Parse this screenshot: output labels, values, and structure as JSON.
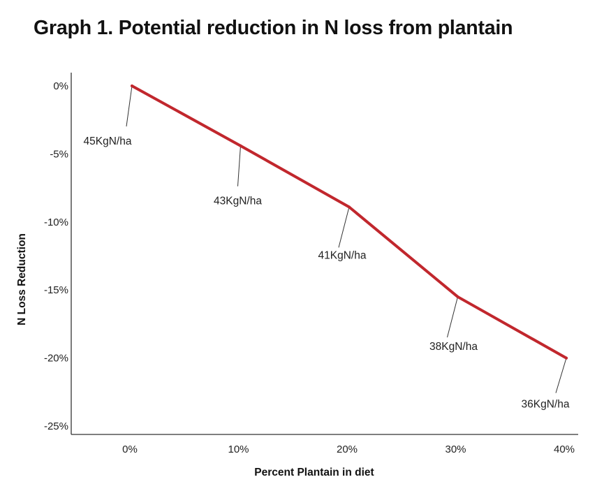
{
  "chart_data": {
    "type": "line",
    "title": "Graph 1. Potential reduction in N loss from plantain",
    "xlabel": "Percent Plantain in diet",
    "ylabel": "N Loss Reduction",
    "categories": [
      "0%",
      "10%",
      "20%",
      "30%",
      "40%"
    ],
    "x": [
      0,
      10,
      20,
      30,
      40
    ],
    "series": [
      {
        "values": [
          0,
          -4.4,
          -8.9,
          -15.5,
          -20
        ],
        "data_labels": [
          "45KgN/ha",
          "43KgN/ha",
          "41KgN/ha",
          "38KgN/ha",
          "36KgN/ha"
        ]
      }
    ],
    "ylim": [
      -25,
      0
    ],
    "yticks": [
      0,
      -5,
      -10,
      -15,
      -20,
      -25
    ],
    "ytick_labels": [
      "0%",
      "-5%",
      "-10%",
      "-15%",
      "-20%",
      "-25%"
    ],
    "grid": false,
    "legend": "none",
    "colors": {
      "line": "#c1272d",
      "axis": "#333333",
      "leader": "#333333"
    }
  }
}
